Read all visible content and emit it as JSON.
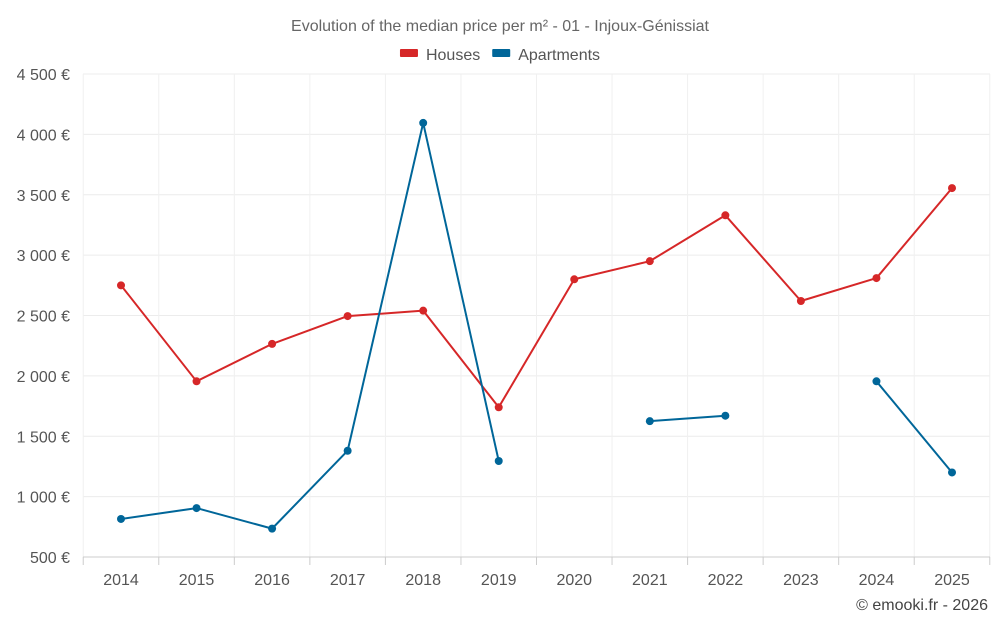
{
  "chart_data": {
    "type": "line",
    "title": "Evolution of the median price per m² - 01 - Injoux-Génissiat",
    "x": [
      "2014",
      "2015",
      "2016",
      "2017",
      "2018",
      "2019",
      "2020",
      "2021",
      "2022",
      "2023",
      "2024",
      "2025"
    ],
    "series": [
      {
        "name": "Houses",
        "color": "#d62728",
        "values": [
          2750,
          1955,
          2265,
          2495,
          2540,
          1740,
          2800,
          2950,
          3330,
          2620,
          2810,
          3555
        ]
      },
      {
        "name": "Apartments",
        "color": "#006699",
        "values": [
          815,
          905,
          735,
          1380,
          4095,
          1295,
          null,
          1625,
          1670,
          null,
          1955,
          1200
        ]
      }
    ],
    "y_ticks": [
      "500 €",
      "1 000 €",
      "1 500 €",
      "2 000 €",
      "2 500 €",
      "3 000 €",
      "3 500 €",
      "4 000 €",
      "4 500 €"
    ],
    "ylim": [
      500,
      4500
    ],
    "grid": true,
    "legend_position": "top-center"
  },
  "credit": "© emooki.fr - 2026"
}
